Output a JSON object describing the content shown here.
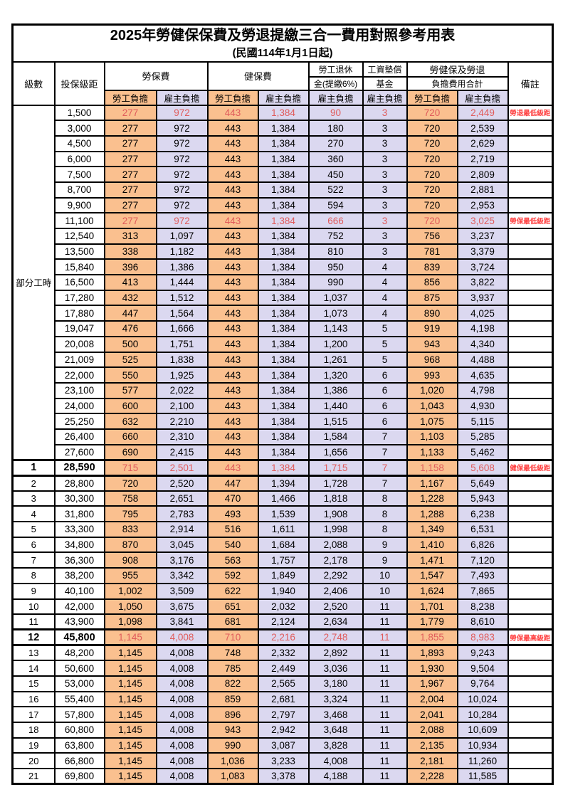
{
  "title": "2025年勞健保保費及勞退提繳三合一費用對照參考用表",
  "subtitle": "(民國114年1月1日起)",
  "header": {
    "level": "級數",
    "bracket": "投保級距",
    "labor_fee": "勞保費",
    "health_fee": "健保費",
    "pension_line1": "勞工退休",
    "pension_line2": "金(提繳6%)",
    "wage_fund_line1": "工資墊償",
    "wage_fund_line2": "基金",
    "total_line1": "勞健保及勞退",
    "total_line2": "負擔費用合計",
    "remark": "備註",
    "employee_share": "勞工負擔",
    "employer_share": "雇主負擔"
  },
  "part_time_label": "部分工時",
  "part_time_rowspan": 23,
  "colors": {
    "employee_bg": "#FAC08F",
    "employer_bg": "#DBD8F0",
    "red_value": "#E05C5C",
    "red_remark": "#FF4040"
  },
  "rows": [
    {
      "lv": "",
      "br": "1,500",
      "v": [
        "277",
        "972",
        "443",
        "1,384",
        "90",
        "3",
        "720",
        "2,449"
      ],
      "rm": "勞退最低級距",
      "red": true,
      "bold": false
    },
    {
      "lv": "",
      "br": "3,000",
      "v": [
        "277",
        "972",
        "443",
        "1,384",
        "180",
        "3",
        "720",
        "2,539"
      ],
      "rm": "",
      "red": false,
      "bold": false
    },
    {
      "lv": "",
      "br": "4,500",
      "v": [
        "277",
        "972",
        "443",
        "1,384",
        "270",
        "3",
        "720",
        "2,629"
      ],
      "rm": "",
      "red": false,
      "bold": false
    },
    {
      "lv": "",
      "br": "6,000",
      "v": [
        "277",
        "972",
        "443",
        "1,384",
        "360",
        "3",
        "720",
        "2,719"
      ],
      "rm": "",
      "red": false,
      "bold": false
    },
    {
      "lv": "",
      "br": "7,500",
      "v": [
        "277",
        "972",
        "443",
        "1,384",
        "450",
        "3",
        "720",
        "2,809"
      ],
      "rm": "",
      "red": false,
      "bold": false
    },
    {
      "lv": "",
      "br": "8,700",
      "v": [
        "277",
        "972",
        "443",
        "1,384",
        "522",
        "3",
        "720",
        "2,881"
      ],
      "rm": "",
      "red": false,
      "bold": false
    },
    {
      "lv": "",
      "br": "9,900",
      "v": [
        "277",
        "972",
        "443",
        "1,384",
        "594",
        "3",
        "720",
        "2,953"
      ],
      "rm": "",
      "red": false,
      "bold": false
    },
    {
      "lv": "",
      "br": "11,100",
      "v": [
        "277",
        "972",
        "443",
        "1,384",
        "666",
        "3",
        "720",
        "3,025"
      ],
      "rm": "勞保最低級距",
      "red": true,
      "bold": false
    },
    {
      "lv": "",
      "br": "12,540",
      "v": [
        "313",
        "1,097",
        "443",
        "1,384",
        "752",
        "3",
        "756",
        "3,237"
      ],
      "rm": "",
      "red": false,
      "bold": false
    },
    {
      "lv": "",
      "br": "13,500",
      "v": [
        "338",
        "1,182",
        "443",
        "1,384",
        "810",
        "3",
        "781",
        "3,379"
      ],
      "rm": "",
      "red": false,
      "bold": false
    },
    {
      "lv": "",
      "br": "15,840",
      "v": [
        "396",
        "1,386",
        "443",
        "1,384",
        "950",
        "4",
        "839",
        "3,724"
      ],
      "rm": "",
      "red": false,
      "bold": false
    },
    {
      "lv": "",
      "br": "16,500",
      "v": [
        "413",
        "1,444",
        "443",
        "1,384",
        "990",
        "4",
        "856",
        "3,822"
      ],
      "rm": "",
      "red": false,
      "bold": false
    },
    {
      "lv": "",
      "br": "17,280",
      "v": [
        "432",
        "1,512",
        "443",
        "1,384",
        "1,037",
        "4",
        "875",
        "3,937"
      ],
      "rm": "",
      "red": false,
      "bold": false
    },
    {
      "lv": "",
      "br": "17,880",
      "v": [
        "447",
        "1,564",
        "443",
        "1,384",
        "1,073",
        "4",
        "890",
        "4,025"
      ],
      "rm": "",
      "red": false,
      "bold": false
    },
    {
      "lv": "",
      "br": "19,047",
      "v": [
        "476",
        "1,666",
        "443",
        "1,384",
        "1,143",
        "5",
        "919",
        "4,198"
      ],
      "rm": "",
      "red": false,
      "bold": false
    },
    {
      "lv": "",
      "br": "20,008",
      "v": [
        "500",
        "1,751",
        "443",
        "1,384",
        "1,200",
        "5",
        "943",
        "4,340"
      ],
      "rm": "",
      "red": false,
      "bold": false
    },
    {
      "lv": "",
      "br": "21,009",
      "v": [
        "525",
        "1,838",
        "443",
        "1,384",
        "1,261",
        "5",
        "968",
        "4,488"
      ],
      "rm": "",
      "red": false,
      "bold": false
    },
    {
      "lv": "",
      "br": "22,000",
      "v": [
        "550",
        "1,925",
        "443",
        "1,384",
        "1,320",
        "6",
        "993",
        "4,635"
      ],
      "rm": "",
      "red": false,
      "bold": false
    },
    {
      "lv": "",
      "br": "23,100",
      "v": [
        "577",
        "2,022",
        "443",
        "1,384",
        "1,386",
        "6",
        "1,020",
        "4,798"
      ],
      "rm": "",
      "red": false,
      "bold": false
    },
    {
      "lv": "",
      "br": "24,000",
      "v": [
        "600",
        "2,100",
        "443",
        "1,384",
        "1,440",
        "6",
        "1,043",
        "4,930"
      ],
      "rm": "",
      "red": false,
      "bold": false
    },
    {
      "lv": "",
      "br": "25,250",
      "v": [
        "632",
        "2,210",
        "443",
        "1,384",
        "1,515",
        "6",
        "1,075",
        "5,115"
      ],
      "rm": "",
      "red": false,
      "bold": false
    },
    {
      "lv": "",
      "br": "26,400",
      "v": [
        "660",
        "2,310",
        "443",
        "1,384",
        "1,584",
        "7",
        "1,103",
        "5,285"
      ],
      "rm": "",
      "red": false,
      "bold": false
    },
    {
      "lv": "",
      "br": "27,600",
      "v": [
        "690",
        "2,415",
        "443",
        "1,384",
        "1,656",
        "7",
        "1,133",
        "5,462"
      ],
      "rm": "",
      "red": false,
      "bold": false
    },
    {
      "lv": "1",
      "br": "28,590",
      "v": [
        "715",
        "2,501",
        "443",
        "1,384",
        "1,715",
        "7",
        "1,158",
        "5,608"
      ],
      "rm": "健保最低級距",
      "red": true,
      "bold": true
    },
    {
      "lv": "2",
      "br": "28,800",
      "v": [
        "720",
        "2,520",
        "447",
        "1,394",
        "1,728",
        "7",
        "1,167",
        "5,649"
      ],
      "rm": "",
      "red": false,
      "bold": false
    },
    {
      "lv": "3",
      "br": "30,300",
      "v": [
        "758",
        "2,651",
        "470",
        "1,466",
        "1,818",
        "8",
        "1,228",
        "5,943"
      ],
      "rm": "",
      "red": false,
      "bold": false
    },
    {
      "lv": "4",
      "br": "31,800",
      "v": [
        "795",
        "2,783",
        "493",
        "1,539",
        "1,908",
        "8",
        "1,288",
        "6,238"
      ],
      "rm": "",
      "red": false,
      "bold": false
    },
    {
      "lv": "5",
      "br": "33,300",
      "v": [
        "833",
        "2,914",
        "516",
        "1,611",
        "1,998",
        "8",
        "1,349",
        "6,531"
      ],
      "rm": "",
      "red": false,
      "bold": false
    },
    {
      "lv": "6",
      "br": "34,800",
      "v": [
        "870",
        "3,045",
        "540",
        "1,684",
        "2,088",
        "9",
        "1,410",
        "6,826"
      ],
      "rm": "",
      "red": false,
      "bold": false
    },
    {
      "lv": "7",
      "br": "36,300",
      "v": [
        "908",
        "3,176",
        "563",
        "1,757",
        "2,178",
        "9",
        "1,471",
        "7,120"
      ],
      "rm": "",
      "red": false,
      "bold": false
    },
    {
      "lv": "8",
      "br": "38,200",
      "v": [
        "955",
        "3,342",
        "592",
        "1,849",
        "2,292",
        "10",
        "1,547",
        "7,493"
      ],
      "rm": "",
      "red": false,
      "bold": false
    },
    {
      "lv": "9",
      "br": "40,100",
      "v": [
        "1,002",
        "3,509",
        "622",
        "1,940",
        "2,406",
        "10",
        "1,624",
        "7,865"
      ],
      "rm": "",
      "red": false,
      "bold": false
    },
    {
      "lv": "10",
      "br": "42,000",
      "v": [
        "1,050",
        "3,675",
        "651",
        "2,032",
        "2,520",
        "11",
        "1,701",
        "8,238"
      ],
      "rm": "",
      "red": false,
      "bold": false
    },
    {
      "lv": "11",
      "br": "43,900",
      "v": [
        "1,098",
        "3,841",
        "681",
        "2,124",
        "2,634",
        "11",
        "1,779",
        "8,610"
      ],
      "rm": "",
      "red": false,
      "bold": false
    },
    {
      "lv": "12",
      "br": "45,800",
      "v": [
        "1,145",
        "4,008",
        "710",
        "2,216",
        "2,748",
        "11",
        "1,855",
        "8,983"
      ],
      "rm": "勞保最高級距",
      "red": true,
      "bold": true
    },
    {
      "lv": "13",
      "br": "48,200",
      "v": [
        "1,145",
        "4,008",
        "748",
        "2,332",
        "2,892",
        "11",
        "1,893",
        "9,243"
      ],
      "rm": "",
      "red": false,
      "bold": false
    },
    {
      "lv": "14",
      "br": "50,600",
      "v": [
        "1,145",
        "4,008",
        "785",
        "2,449",
        "3,036",
        "11",
        "1,930",
        "9,504"
      ],
      "rm": "",
      "red": false,
      "bold": false
    },
    {
      "lv": "15",
      "br": "53,000",
      "v": [
        "1,145",
        "4,008",
        "822",
        "2,565",
        "3,180",
        "11",
        "1,967",
        "9,764"
      ],
      "rm": "",
      "red": false,
      "bold": false
    },
    {
      "lv": "16",
      "br": "55,400",
      "v": [
        "1,145",
        "4,008",
        "859",
        "2,681",
        "3,324",
        "11",
        "2,004",
        "10,024"
      ],
      "rm": "",
      "red": false,
      "bold": false
    },
    {
      "lv": "17",
      "br": "57,800",
      "v": [
        "1,145",
        "4,008",
        "896",
        "2,797",
        "3,468",
        "11",
        "2,041",
        "10,284"
      ],
      "rm": "",
      "red": false,
      "bold": false
    },
    {
      "lv": "18",
      "br": "60,800",
      "v": [
        "1,145",
        "4,008",
        "943",
        "2,942",
        "3,648",
        "11",
        "2,088",
        "10,609"
      ],
      "rm": "",
      "red": false,
      "bold": false
    },
    {
      "lv": "19",
      "br": "63,800",
      "v": [
        "1,145",
        "4,008",
        "990",
        "3,087",
        "3,828",
        "11",
        "2,135",
        "10,934"
      ],
      "rm": "",
      "red": false,
      "bold": false
    },
    {
      "lv": "20",
      "br": "66,800",
      "v": [
        "1,145",
        "4,008",
        "1,036",
        "3,233",
        "4,008",
        "11",
        "2,181",
        "11,260"
      ],
      "rm": "",
      "red": false,
      "bold": false
    },
    {
      "lv": "21",
      "br": "69,800",
      "v": [
        "1,145",
        "4,008",
        "1,083",
        "3,378",
        "4,188",
        "11",
        "2,228",
        "11,585"
      ],
      "rm": "",
      "red": false,
      "bold": false
    }
  ]
}
